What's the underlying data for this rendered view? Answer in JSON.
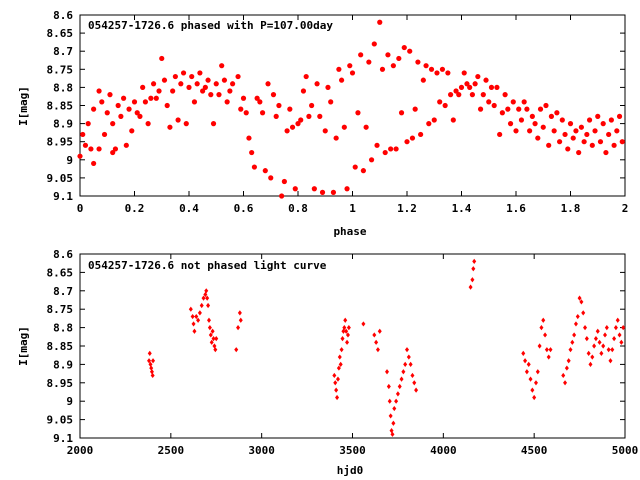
{
  "chart_data": [
    {
      "type": "scatter",
      "title": "054257-1726.6 phased with P=107.00day",
      "xlabel": "phase",
      "ylabel": "I[mag]",
      "xlim": [
        0,
        2
      ],
      "ylim": [
        9.1,
        8.6
      ],
      "y_inverted": true,
      "grid": false,
      "marker_color": "#ff0000",
      "marker": "filled-circle",
      "x_ticks": [
        "0",
        "0.2",
        "0.4",
        "0.6",
        "0.8",
        "1",
        "1.2",
        "1.4",
        "1.6",
        "1.8",
        "2"
      ],
      "y_ticks": [
        "8.6",
        "8.65",
        "8.7",
        "8.75",
        "8.8",
        "8.85",
        "8.9",
        "8.95",
        "9",
        "9.05",
        "9.1"
      ],
      "points": [
        [
          0.0,
          8.99
        ],
        [
          0.01,
          8.93
        ],
        [
          0.02,
          8.96
        ],
        [
          0.03,
          8.9
        ],
        [
          0.04,
          8.97
        ],
        [
          0.05,
          9.01
        ],
        [
          0.05,
          8.86
        ],
        [
          0.07,
          8.97
        ],
        [
          0.07,
          8.81
        ],
        [
          0.08,
          8.84
        ],
        [
          0.09,
          8.93
        ],
        [
          0.1,
          8.87
        ],
        [
          0.11,
          8.82
        ],
        [
          0.12,
          8.9
        ],
        [
          0.12,
          8.98
        ],
        [
          0.13,
          8.97
        ],
        [
          0.14,
          8.85
        ],
        [
          0.15,
          8.88
        ],
        [
          0.16,
          8.83
        ],
        [
          0.17,
          8.96
        ],
        [
          0.18,
          8.86
        ],
        [
          0.19,
          8.92
        ],
        [
          0.2,
          8.84
        ],
        [
          0.21,
          8.87
        ],
        [
          0.22,
          8.88
        ],
        [
          0.23,
          8.8
        ],
        [
          0.24,
          8.84
        ],
        [
          0.25,
          8.9
        ],
        [
          0.26,
          8.83
        ],
        [
          0.27,
          8.79
        ],
        [
          0.28,
          8.83
        ],
        [
          0.29,
          8.81
        ],
        [
          0.3,
          8.72
        ],
        [
          0.31,
          8.78
        ],
        [
          0.32,
          8.85
        ],
        [
          0.33,
          8.91
        ],
        [
          0.34,
          8.81
        ],
        [
          0.35,
          8.77
        ],
        [
          0.36,
          8.89
        ],
        [
          0.37,
          8.79
        ],
        [
          0.38,
          8.76
        ],
        [
          0.39,
          8.9
        ],
        [
          0.4,
          8.8
        ],
        [
          0.41,
          8.77
        ],
        [
          0.42,
          8.84
        ],
        [
          0.43,
          8.79
        ],
        [
          0.44,
          8.76
        ],
        [
          0.45,
          8.81
        ],
        [
          0.46,
          8.8
        ],
        [
          0.47,
          8.78
        ],
        [
          0.48,
          8.82
        ],
        [
          0.49,
          8.9
        ],
        [
          0.5,
          8.79
        ],
        [
          0.51,
          8.82
        ],
        [
          0.52,
          8.74
        ],
        [
          0.53,
          8.78
        ],
        [
          0.54,
          8.84
        ],
        [
          0.55,
          8.81
        ],
        [
          0.56,
          8.79
        ],
        [
          0.58,
          8.77
        ],
        [
          0.59,
          8.86
        ],
        [
          0.6,
          8.83
        ],
        [
          0.61,
          8.87
        ],
        [
          0.62,
          8.94
        ],
        [
          0.63,
          8.98
        ],
        [
          0.64,
          9.02
        ],
        [
          0.65,
          8.83
        ],
        [
          0.66,
          8.84
        ],
        [
          0.67,
          8.87
        ],
        [
          0.68,
          9.03
        ],
        [
          0.69,
          8.79
        ],
        [
          0.7,
          9.05
        ],
        [
          0.71,
          8.82
        ],
        [
          0.72,
          8.88
        ],
        [
          0.73,
          8.85
        ],
        [
          0.74,
          9.1
        ],
        [
          0.75,
          9.06
        ],
        [
          0.76,
          8.92
        ],
        [
          0.77,
          8.86
        ],
        [
          0.78,
          8.91
        ],
        [
          0.79,
          9.08
        ],
        [
          0.8,
          8.9
        ],
        [
          0.81,
          8.89
        ],
        [
          0.82,
          8.81
        ],
        [
          0.83,
          8.77
        ],
        [
          0.84,
          8.88
        ],
        [
          0.85,
          8.85
        ],
        [
          0.86,
          9.08
        ],
        [
          0.87,
          8.79
        ],
        [
          0.88,
          8.88
        ],
        [
          0.89,
          9.09
        ],
        [
          0.9,
          8.92
        ],
        [
          0.91,
          8.8
        ],
        [
          0.92,
          8.84
        ],
        [
          0.93,
          9.09
        ],
        [
          0.94,
          8.94
        ],
        [
          0.95,
          8.75
        ],
        [
          0.96,
          8.78
        ],
        [
          0.97,
          8.91
        ],
        [
          0.98,
          9.08
        ],
        [
          0.99,
          8.74
        ],
        [
          1.0,
          8.76
        ],
        [
          1.01,
          9.02
        ],
        [
          1.02,
          8.87
        ],
        [
          1.03,
          8.71
        ],
        [
          1.04,
          9.03
        ],
        [
          1.05,
          8.91
        ],
        [
          1.06,
          8.73
        ],
        [
          1.07,
          9.0
        ],
        [
          1.08,
          8.68
        ],
        [
          1.09,
          8.96
        ],
        [
          1.1,
          8.62
        ],
        [
          1.11,
          8.75
        ],
        [
          1.12,
          8.98
        ],
        [
          1.13,
          8.71
        ],
        [
          1.14,
          8.97
        ],
        [
          1.15,
          8.74
        ],
        [
          1.16,
          8.97
        ],
        [
          1.17,
          8.72
        ],
        [
          1.18,
          8.87
        ],
        [
          1.19,
          8.69
        ],
        [
          1.2,
          8.95
        ],
        [
          1.21,
          8.7
        ],
        [
          1.22,
          8.94
        ],
        [
          1.23,
          8.86
        ],
        [
          1.24,
          8.73
        ],
        [
          1.25,
          8.93
        ],
        [
          1.26,
          8.78
        ],
        [
          1.27,
          8.74
        ],
        [
          1.28,
          8.9
        ],
        [
          1.29,
          8.75
        ],
        [
          1.3,
          8.89
        ],
        [
          1.31,
          8.76
        ],
        [
          1.32,
          8.84
        ],
        [
          1.33,
          8.75
        ],
        [
          1.34,
          8.85
        ],
        [
          1.35,
          8.76
        ],
        [
          1.36,
          8.82
        ],
        [
          1.37,
          8.89
        ],
        [
          1.38,
          8.81
        ],
        [
          1.39,
          8.82
        ],
        [
          1.4,
          8.8
        ],
        [
          1.41,
          8.76
        ],
        [
          1.42,
          8.79
        ],
        [
          1.43,
          8.8
        ],
        [
          1.44,
          8.82
        ],
        [
          1.45,
          8.79
        ],
        [
          1.46,
          8.77
        ],
        [
          1.47,
          8.86
        ],
        [
          1.48,
          8.82
        ],
        [
          1.49,
          8.78
        ],
        [
          1.5,
          8.84
        ],
        [
          1.51,
          8.8
        ],
        [
          1.52,
          8.85
        ],
        [
          1.53,
          8.8
        ],
        [
          1.54,
          8.93
        ],
        [
          1.55,
          8.87
        ],
        [
          1.56,
          8.82
        ],
        [
          1.57,
          8.86
        ],
        [
          1.58,
          8.9
        ],
        [
          1.59,
          8.84
        ],
        [
          1.6,
          8.92
        ],
        [
          1.61,
          8.86
        ],
        [
          1.62,
          8.89
        ],
        [
          1.63,
          8.84
        ],
        [
          1.64,
          8.86
        ],
        [
          1.65,
          8.92
        ],
        [
          1.66,
          8.88
        ],
        [
          1.67,
          8.9
        ],
        [
          1.68,
          8.94
        ],
        [
          1.69,
          8.86
        ],
        [
          1.7,
          8.91
        ],
        [
          1.71,
          8.85
        ],
        [
          1.72,
          8.96
        ],
        [
          1.73,
          8.88
        ],
        [
          1.74,
          8.92
        ],
        [
          1.75,
          8.87
        ],
        [
          1.76,
          8.95
        ],
        [
          1.77,
          8.89
        ],
        [
          1.78,
          8.93
        ],
        [
          1.79,
          8.97
        ],
        [
          1.8,
          8.9
        ],
        [
          1.81,
          8.94
        ],
        [
          1.82,
          8.92
        ],
        [
          1.83,
          8.98
        ],
        [
          1.84,
          8.91
        ],
        [
          1.85,
          8.95
        ],
        [
          1.86,
          8.93
        ],
        [
          1.87,
          8.89
        ],
        [
          1.88,
          8.96
        ],
        [
          1.89,
          8.92
        ],
        [
          1.9,
          8.88
        ],
        [
          1.91,
          8.95
        ],
        [
          1.92,
          8.9
        ],
        [
          1.93,
          8.98
        ],
        [
          1.94,
          8.93
        ],
        [
          1.95,
          8.89
        ],
        [
          1.96,
          8.96
        ],
        [
          1.97,
          8.92
        ],
        [
          1.98,
          8.88
        ],
        [
          1.99,
          8.95
        ]
      ]
    },
    {
      "type": "scatter",
      "title": "054257-1726.6 not phased light curve",
      "xlabel": "hjd0",
      "ylabel": "I[mag]",
      "xlim": [
        2000,
        5000
      ],
      "ylim": [
        9.1,
        8.6
      ],
      "y_inverted": true,
      "grid": false,
      "marker_color": "#ff0000",
      "marker": "small-diamond",
      "x_ticks": [
        "2000",
        "2500",
        "3000",
        "3500",
        "4000",
        "4500",
        "5000"
      ],
      "y_ticks": [
        "8.6",
        "8.65",
        "8.7",
        "8.75",
        "8.8",
        "8.85",
        "8.9",
        "8.95",
        "9",
        "9.05",
        "9.1"
      ],
      "points": [
        [
          2380,
          8.89
        ],
        [
          2384,
          8.87
        ],
        [
          2388,
          8.9
        ],
        [
          2392,
          8.91
        ],
        [
          2396,
          8.92
        ],
        [
          2400,
          8.93
        ],
        [
          2402,
          8.89
        ],
        [
          2610,
          8.75
        ],
        [
          2620,
          8.77
        ],
        [
          2625,
          8.79
        ],
        [
          2630,
          8.81
        ],
        [
          2640,
          8.77
        ],
        [
          2650,
          8.78
        ],
        [
          2660,
          8.76
        ],
        [
          2670,
          8.74
        ],
        [
          2680,
          8.72
        ],
        [
          2690,
          8.71
        ],
        [
          2695,
          8.7
        ],
        [
          2700,
          8.72
        ],
        [
          2705,
          8.74
        ],
        [
          2710,
          8.78
        ],
        [
          2715,
          8.8
        ],
        [
          2720,
          8.82
        ],
        [
          2725,
          8.84
        ],
        [
          2730,
          8.81
        ],
        [
          2735,
          8.83
        ],
        [
          2740,
          8.85
        ],
        [
          2745,
          8.86
        ],
        [
          2750,
          8.83
        ],
        [
          2860,
          8.86
        ],
        [
          2870,
          8.8
        ],
        [
          2880,
          8.76
        ],
        [
          2885,
          8.78
        ],
        [
          3400,
          8.93
        ],
        [
          3405,
          8.95
        ],
        [
          3410,
          8.97
        ],
        [
          3415,
          8.99
        ],
        [
          3420,
          8.94
        ],
        [
          3425,
          8.91
        ],
        [
          3430,
          8.88
        ],
        [
          3435,
          8.9
        ],
        [
          3440,
          8.86
        ],
        [
          3445,
          8.83
        ],
        [
          3450,
          8.81
        ],
        [
          3455,
          8.8
        ],
        [
          3460,
          8.78
        ],
        [
          3465,
          8.81
        ],
        [
          3470,
          8.84
        ],
        [
          3475,
          8.82
        ],
        [
          3480,
          8.8
        ],
        [
          3560,
          8.79
        ],
        [
          3620,
          8.82
        ],
        [
          3630,
          8.84
        ],
        [
          3640,
          8.86
        ],
        [
          3650,
          8.81
        ],
        [
          3690,
          8.92
        ],
        [
          3700,
          8.96
        ],
        [
          3705,
          9.0
        ],
        [
          3710,
          9.04
        ],
        [
          3715,
          9.08
        ],
        [
          3720,
          9.09
        ],
        [
          3725,
          9.06
        ],
        [
          3730,
          9.02
        ],
        [
          3740,
          9.0
        ],
        [
          3750,
          8.98
        ],
        [
          3760,
          8.96
        ],
        [
          3770,
          8.94
        ],
        [
          3780,
          8.92
        ],
        [
          3790,
          8.9
        ],
        [
          3800,
          8.86
        ],
        [
          3810,
          8.88
        ],
        [
          3820,
          8.9
        ],
        [
          3830,
          8.93
        ],
        [
          3840,
          8.95
        ],
        [
          3850,
          8.97
        ],
        [
          4150,
          8.69
        ],
        [
          4160,
          8.67
        ],
        [
          4165,
          8.64
        ],
        [
          4170,
          8.62
        ],
        [
          4440,
          8.87
        ],
        [
          4450,
          8.89
        ],
        [
          4460,
          8.92
        ],
        [
          4470,
          8.9
        ],
        [
          4480,
          8.94
        ],
        [
          4490,
          8.97
        ],
        [
          4500,
          8.99
        ],
        [
          4510,
          8.95
        ],
        [
          4520,
          8.92
        ],
        [
          4530,
          8.85
        ],
        [
          4540,
          8.8
        ],
        [
          4550,
          8.78
        ],
        [
          4560,
          8.82
        ],
        [
          4570,
          8.86
        ],
        [
          4580,
          8.88
        ],
        [
          4590,
          8.86
        ],
        [
          4660,
          8.93
        ],
        [
          4670,
          8.95
        ],
        [
          4680,
          8.91
        ],
        [
          4690,
          8.89
        ],
        [
          4700,
          8.86
        ],
        [
          4710,
          8.84
        ],
        [
          4720,
          8.82
        ],
        [
          4730,
          8.79
        ],
        [
          4740,
          8.77
        ],
        [
          4750,
          8.72
        ],
        [
          4760,
          8.73
        ],
        [
          4770,
          8.76
        ],
        [
          4780,
          8.8
        ],
        [
          4790,
          8.83
        ],
        [
          4800,
          8.87
        ],
        [
          4810,
          8.9
        ],
        [
          4820,
          8.88
        ],
        [
          4830,
          8.85
        ],
        [
          4840,
          8.83
        ],
        [
          4850,
          8.81
        ],
        [
          4860,
          8.84
        ],
        [
          4870,
          8.87
        ],
        [
          4880,
          8.85
        ],
        [
          4890,
          8.82
        ],
        [
          4900,
          8.8
        ],
        [
          4910,
          8.86
        ],
        [
          4920,
          8.89
        ],
        [
          4930,
          8.86
        ],
        [
          4940,
          8.83
        ],
        [
          4950,
          8.8
        ],
        [
          4960,
          8.78
        ],
        [
          4970,
          8.82
        ],
        [
          4980,
          8.84
        ],
        [
          4990,
          8.8
        ]
      ]
    }
  ]
}
